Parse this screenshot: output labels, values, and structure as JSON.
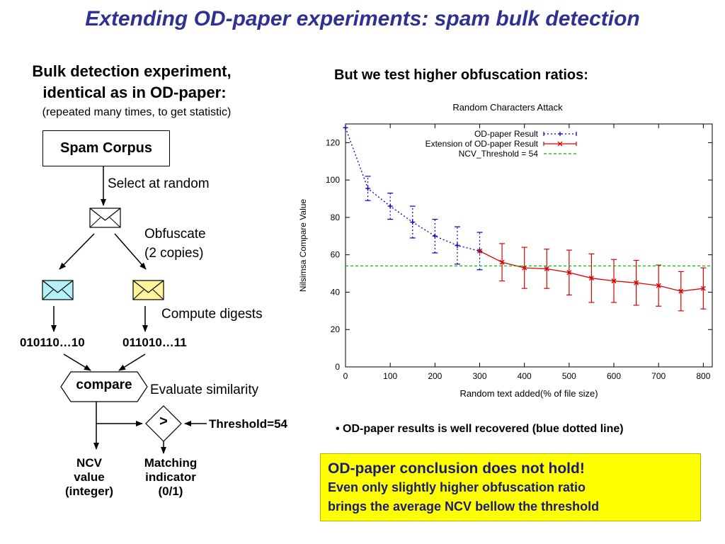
{
  "slide": {
    "title": "Extending OD-paper experiments: spam bulk detection",
    "left_heading_1": "Bulk detection experiment,",
    "left_heading_2": "identical as in OD-paper:",
    "left_subheading": "(repeated many times, to get statistic)",
    "right_heading": "But we test higher obfuscation ratios:",
    "bullet": "• OD-paper results is well recovered (blue dotted line)",
    "conclusion_line1": "OD-paper conclusion does not hold!",
    "conclusion_line2": "Even only slightly higher obfuscation ratio",
    "conclusion_line3": "brings the average NCV bellow the threshold"
  },
  "diagram": {
    "spam_corpus": "Spam Corpus",
    "select_at_random": "Select at random",
    "obfuscate_1": "Obfuscate",
    "obfuscate_2": "(2 copies)",
    "compute_digests": "Compute digests",
    "digest_left": "010110…10",
    "digest_right": "011010…11",
    "compare": "compare",
    "evaluate_similarity": "Evaluate similarity",
    "greater_than": ">",
    "threshold": "Threshold=54",
    "ncv_1": "NCV",
    "ncv_2": "value",
    "ncv_3": "(integer)",
    "matching_1": "Matching",
    "matching_2": "indicator",
    "matching_3": "(0/1)",
    "colors": {
      "envelope_white": "#ffffff",
      "envelope_cyan": "#b3f0f7",
      "envelope_yellow": "#fff59d"
    }
  },
  "chart_data": {
    "type": "line",
    "title": "Random Characters Attack",
    "xlabel": "Random text added(% of file size)",
    "ylabel": "Nilsimsa Compare Value",
    "xlim": [
      0,
      820
    ],
    "ylim": [
      0,
      130
    ],
    "xticks": [
      0,
      100,
      200,
      300,
      400,
      500,
      600,
      700,
      800
    ],
    "yticks": [
      0,
      20,
      40,
      60,
      80,
      100,
      120
    ],
    "legend_position": "top-right",
    "grid": false,
    "series": [
      {
        "name": "OD-paper Result",
        "color": "#0000cc",
        "style": "dotted",
        "marker": "plus",
        "x": [
          0,
          50,
          100,
          150,
          200,
          250,
          300
        ],
        "y": [
          128,
          95.5,
          86,
          77.5,
          70,
          65,
          62
        ],
        "err": [
          0,
          6.5,
          7,
          8.5,
          9,
          10,
          10
        ]
      },
      {
        "name": "Extension of OD-paper Result",
        "color": "#dd0000",
        "style": "solid",
        "marker": "cross",
        "x": [
          300,
          350,
          400,
          450,
          500,
          550,
          600,
          650,
          700,
          750,
          800
        ],
        "y": [
          62,
          56,
          53,
          52.5,
          50.5,
          47.5,
          46,
          45,
          43.5,
          40.5,
          42
        ],
        "err": [
          0,
          10,
          11,
          10.5,
          12,
          13,
          11.5,
          12,
          11,
          10.5,
          11
        ]
      },
      {
        "name": "NCV_Threshold = 54",
        "color": "#00bb00",
        "style": "dashed",
        "x": [
          0,
          820
        ],
        "y": [
          54,
          54
        ]
      }
    ]
  }
}
